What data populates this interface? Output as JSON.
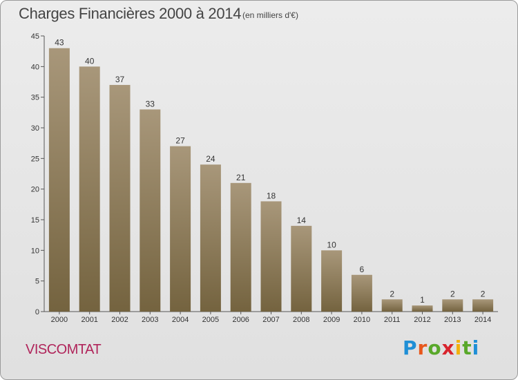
{
  "header": {
    "title": "Charges Financières 2000 à 2014",
    "subtitle": "(en milliers d'€)"
  },
  "footer": {
    "commune": "VISCOMTAT",
    "logo_text": "Proxiti"
  },
  "colors": {
    "bar_top": "#a8977a",
    "bar_bottom": "#74633f",
    "commune": "#b0245a"
  },
  "chart_data": {
    "type": "bar",
    "title": "Charges Financières 2000 à 2014",
    "subtitle": "(en milliers d'€)",
    "xlabel": "",
    "ylabel": "",
    "categories": [
      "2000",
      "2001",
      "2002",
      "2003",
      "2004",
      "2005",
      "2006",
      "2007",
      "2008",
      "2009",
      "2010",
      "2011",
      "2012",
      "2013",
      "2014"
    ],
    "values": [
      43,
      40,
      37,
      33,
      27,
      24,
      21,
      18,
      14,
      10,
      6,
      2,
      1,
      2,
      2
    ],
    "ylim": [
      0,
      45
    ],
    "yticks": [
      0,
      5,
      10,
      15,
      20,
      25,
      30,
      35,
      40,
      45
    ],
    "grid": false,
    "legend": "none"
  }
}
